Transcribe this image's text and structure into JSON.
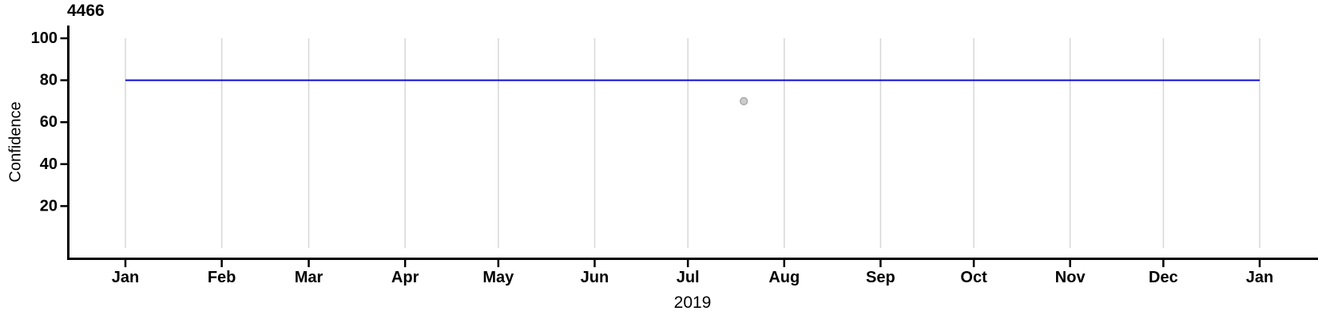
{
  "chart": {
    "title": "4466",
    "y_axis_title": "Confidence",
    "x_axis_title": "2019"
  },
  "chart_data": {
    "type": "line",
    "title": "4466",
    "ylabel": "Confidence",
    "xlabel": "2019",
    "x_domain_days": [
      0,
      365
    ],
    "x_ticks": [
      {
        "label": "Jan",
        "day": 0
      },
      {
        "label": "Feb",
        "day": 31
      },
      {
        "label": "Mar",
        "day": 59
      },
      {
        "label": "Apr",
        "day": 90
      },
      {
        "label": "May",
        "day": 120
      },
      {
        "label": "Jun",
        "day": 151
      },
      {
        "label": "Jul",
        "day": 181
      },
      {
        "label": "Aug",
        "day": 212
      },
      {
        "label": "Sep",
        "day": 243
      },
      {
        "label": "Oct",
        "day": 273
      },
      {
        "label": "Nov",
        "day": 304
      },
      {
        "label": "Dec",
        "day": 334
      },
      {
        "label": "Jan",
        "day": 365
      }
    ],
    "y_ticks": [
      100,
      80,
      60,
      40,
      20
    ],
    "y_gridline_range": [
      0,
      100
    ],
    "grid": true,
    "legend": "none",
    "series": [
      {
        "name": "confidence-threshold-line",
        "color": "#0d0dd6",
        "points": [
          {
            "day": 0,
            "value": 80
          },
          {
            "day": 365,
            "value": 80
          }
        ]
      }
    ],
    "markers": [
      {
        "name": "observation-point",
        "day": 199,
        "value": 70,
        "fill": "#cbcbcb",
        "stroke": "#a0a0a0"
      }
    ],
    "colors": {
      "grid": "#d7d7d7",
      "axis": "#000000",
      "text": "#000000"
    }
  }
}
